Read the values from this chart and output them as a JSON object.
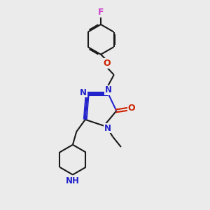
{
  "bg_color": "#ebebeb",
  "bond_color": "#1a1a1a",
  "N_color": "#2222cc",
  "O_color": "#cc2200",
  "F_color": "#cc44cc",
  "line_width": 1.5,
  "fig_size": [
    3.0,
    3.0
  ],
  "dpi": 100,
  "xlim": [
    0,
    10
  ],
  "ylim": [
    0,
    10
  ]
}
